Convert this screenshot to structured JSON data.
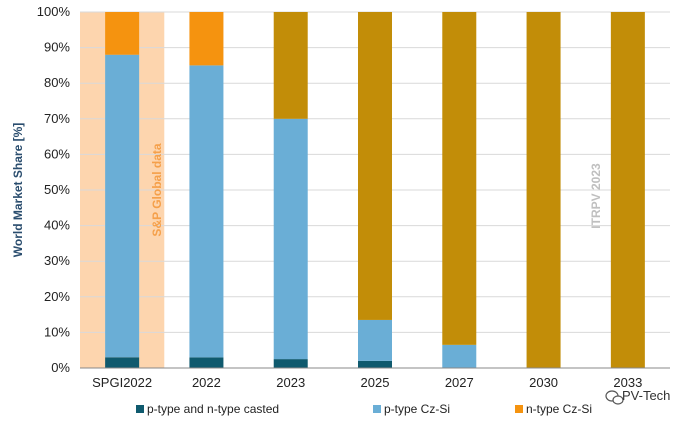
{
  "chart_data": {
    "type": "bar",
    "stacked": true,
    "categories": [
      "SPGI2022",
      "2022",
      "2023",
      "2025",
      "2027",
      "2030",
      "2033"
    ],
    "series": [
      {
        "name": "p-type and n-type casted",
        "color": "#0f5a6e",
        "values": [
          3,
          3,
          2.5,
          2,
          0,
          0,
          0
        ]
      },
      {
        "name": "p-type Cz-Si",
        "color": "#6aaed6",
        "values": [
          85,
          82,
          67.5,
          11.5,
          6.5,
          0,
          0
        ]
      },
      {
        "name": "n-type Cz-Si",
        "color": "#f5930f",
        "values": [
          12,
          15,
          0,
          0,
          0,
          0,
          0
        ]
      },
      {
        "name": "",
        "color": "#c28d08",
        "values": [
          0,
          0,
          30,
          86.5,
          93.5,
          100,
          100
        ]
      }
    ],
    "ylabel": "World Market Share [%]",
    "xlabel": "",
    "ylim": [
      0,
      100
    ],
    "yticks": [
      "0%",
      "10%",
      "20%",
      "30%",
      "40%",
      "50%",
      "60%",
      "70%",
      "80%",
      "90%",
      "100%"
    ],
    "grid": true,
    "legend_position": "bottom",
    "annotations": {
      "source_left": "S&P Global data",
      "source_right": "ITRPV 2023"
    },
    "highlight_color": "#fdd5ae",
    "annotation_color": "#f5a04a",
    "watermark": "PV-Tech"
  }
}
